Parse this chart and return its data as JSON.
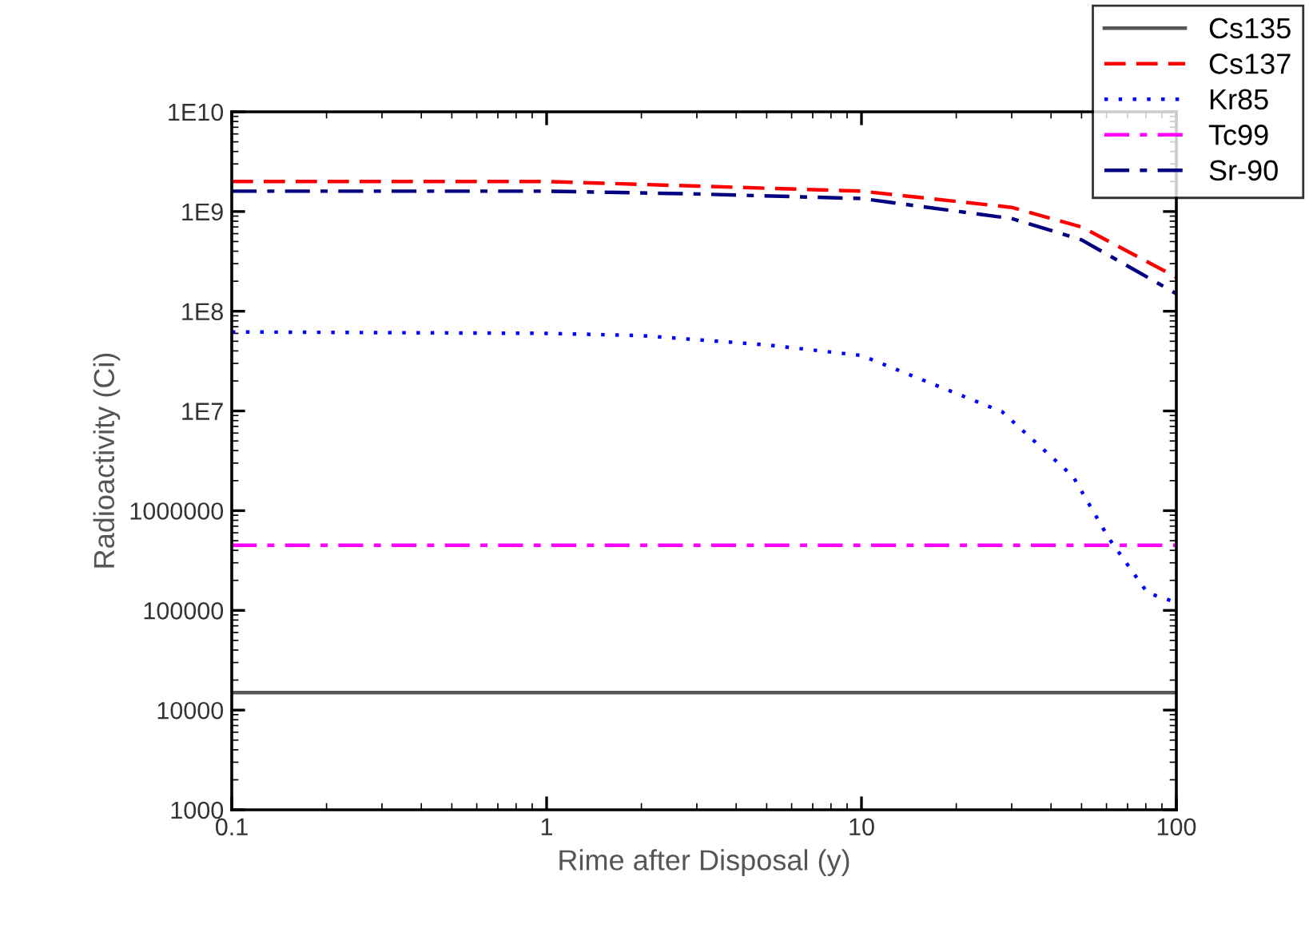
{
  "chart_data": {
    "type": "line",
    "xlabel": "Rime after Disposal (y)",
    "ylabel": "Radioactivity (Ci)",
    "log": "xy",
    "xlim": [
      0.1,
      100
    ],
    "xticks": [
      0.1,
      1,
      10,
      100
    ],
    "ylim": [
      1000,
      10000000000.0
    ],
    "yticks": [
      {
        "value": 1000,
        "label": "1000"
      },
      {
        "value": 10000,
        "label": "10000"
      },
      {
        "value": 100000,
        "label": "100000"
      },
      {
        "value": 1000000,
        "label": "1000000"
      },
      {
        "value": 10000000.0,
        "label": "1E7"
      },
      {
        "value": 100000000.0,
        "label": "1E8"
      },
      {
        "value": 1000000000.0,
        "label": "1E9"
      },
      {
        "value": 10000000000.0,
        "label": "1E10"
      }
    ],
    "grid": false,
    "legend": "top right",
    "marker": "none",
    "series": [
      {
        "name": "Cs135",
        "color": "#555555",
        "line_style": "solid",
        "x": [
          0.1,
          100
        ],
        "values": [
          15000,
          15000
        ]
      },
      {
        "name": "Cs137",
        "color": "#ff0000",
        "line_style": "dashed",
        "x": [
          0.1,
          1,
          3,
          10,
          30,
          50,
          100
        ],
        "values": [
          2000000000,
          2000000000,
          1800000000,
          1600000000,
          1100000000,
          700000000,
          220000000
        ]
      },
      {
        "name": "Kr85",
        "color": "#0000ff",
        "line_style": "dotted",
        "x": [
          0.1,
          1,
          2,
          5,
          10,
          28,
          47,
          61,
          81,
          100
        ],
        "values": [
          62000000,
          60000000,
          57000000,
          46000000,
          36000000,
          9800000,
          2200000,
          530000,
          150000,
          120000
        ]
      },
      {
        "name": "Tc99",
        "color": "#ff00ff",
        "line_style": "dashdot",
        "x": [
          0.1,
          100
        ],
        "values": [
          450000,
          450000
        ]
      },
      {
        "name": "Sr-90",
        "color": "#000080",
        "line_style": "dashdot",
        "x": [
          0.1,
          1,
          3,
          10,
          30,
          50,
          100
        ],
        "values": [
          1600000000,
          1600000000,
          1500000000,
          1350000000,
          850000000,
          520000000,
          150000000
        ]
      }
    ]
  }
}
